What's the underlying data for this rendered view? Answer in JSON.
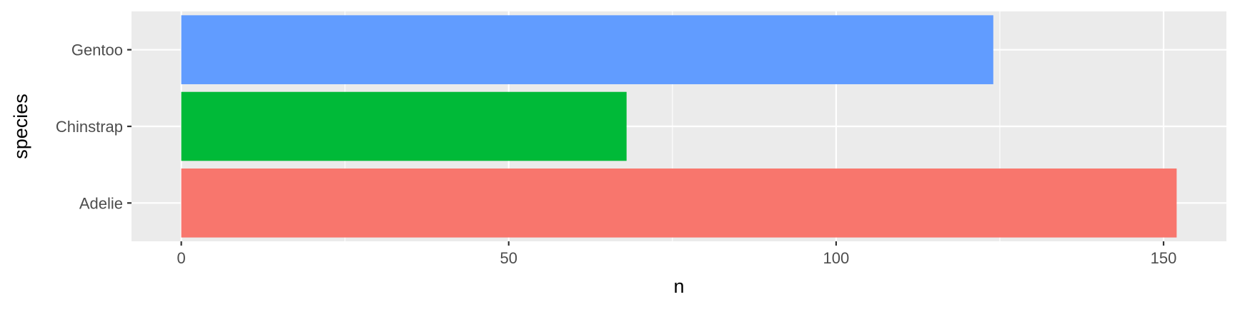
{
  "chart_data": {
    "type": "bar",
    "orientation": "horizontal",
    "categories": [
      "Adelie",
      "Chinstrap",
      "Gentoo"
    ],
    "values": [
      152,
      68,
      124
    ],
    "colors": [
      "#F8766D",
      "#00BA38",
      "#619CFF"
    ],
    "xlabel": "n",
    "ylabel": "species",
    "xlim": [
      -7.6,
      159.6
    ],
    "x_ticks": [
      0,
      50,
      100,
      150
    ],
    "x_tick_labels": [
      "0",
      "50",
      "100",
      "150"
    ],
    "grid": true,
    "legend": "none",
    "panel_background": "#EBEBEB",
    "grid_color": "#FFFFFF"
  }
}
